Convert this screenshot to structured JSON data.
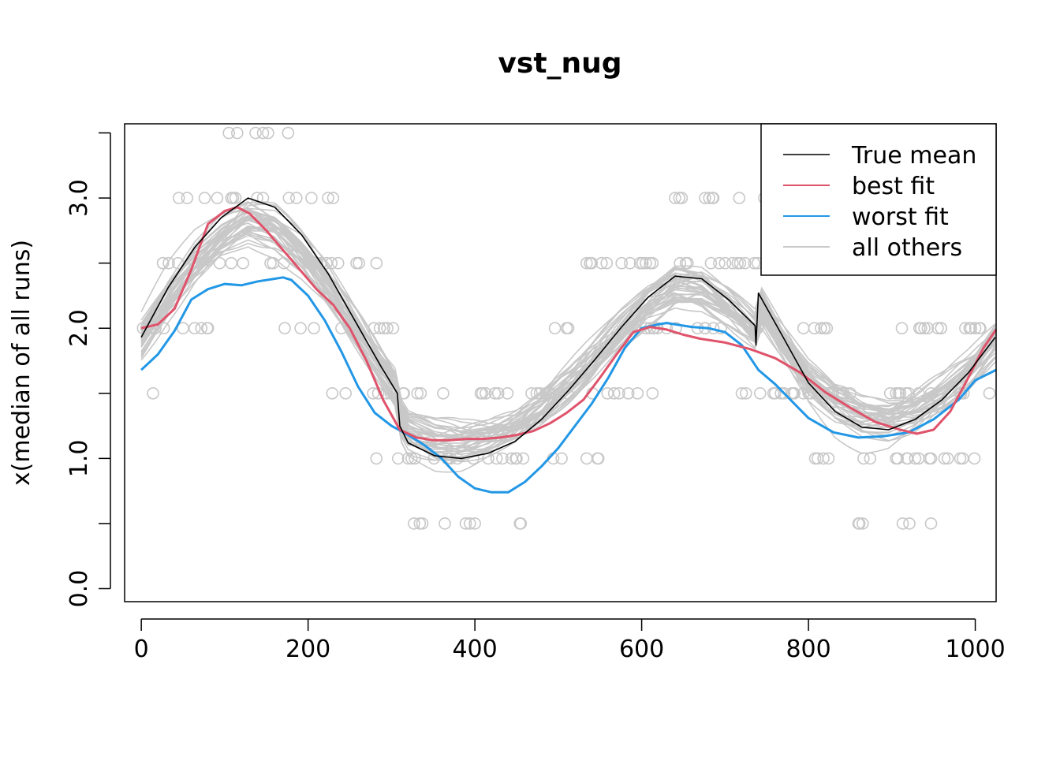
{
  "chart_data": {
    "type": "line",
    "title": "vst_nug",
    "xlabel": "",
    "ylabel": "x(median of all runs)",
    "xlim": [
      -20,
      1025
    ],
    "ylim": [
      -0.1,
      3.57
    ],
    "x_ticks": [
      0,
      200,
      400,
      600,
      800,
      1000
    ],
    "x_tick_labels": [
      "0",
      "200",
      "400",
      "600",
      "800",
      "1000"
    ],
    "y_ticks": [
      0.0,
      0.5,
      1.0,
      1.5,
      2.0,
      2.5,
      3.0,
      3.5
    ],
    "y_tick_labels": [
      "0.0",
      "",
      "1.0",
      "",
      "2.0",
      "",
      "3.0",
      ""
    ],
    "legend": {
      "position": "top-right",
      "entries": [
        {
          "label": "True mean",
          "color": "#000000"
        },
        {
          "label": "best fit",
          "color": "#df536b"
        },
        {
          "label": "worst fit",
          "color": "#2297e6"
        },
        {
          "label": "all others",
          "color": "#c8c8c8"
        }
      ]
    },
    "series": [
      {
        "name": "True mean",
        "color": "#000000",
        "x": [
          0,
          32,
          64,
          96,
          128,
          160,
          192,
          224,
          256,
          288,
          307,
          310,
          320,
          352,
          384,
          416,
          448,
          480,
          512,
          544,
          576,
          608,
          640,
          672,
          704,
          736,
          737,
          740,
          768,
          800,
          832,
          864,
          896,
          928,
          960,
          992,
          1024
        ],
        "values": [
          1.93,
          2.31,
          2.62,
          2.85,
          3.0,
          2.93,
          2.72,
          2.42,
          2.06,
          1.7,
          1.5,
          1.25,
          1.12,
          1.02,
          1.0,
          1.04,
          1.13,
          1.3,
          1.52,
          1.76,
          2.01,
          2.24,
          2.4,
          2.38,
          2.22,
          2.02,
          1.87,
          2.27,
          1.95,
          1.58,
          1.36,
          1.24,
          1.22,
          1.3,
          1.45,
          1.66,
          1.93
        ]
      },
      {
        "name": "best fit",
        "color": "#df536b",
        "x": [
          0,
          20,
          40,
          60,
          80,
          100,
          115,
          130,
          150,
          170,
          190,
          210,
          230,
          250,
          270,
          290,
          310,
          330,
          350,
          370,
          390,
          410,
          430,
          450,
          470,
          490,
          510,
          530,
          550,
          570,
          590,
          610,
          630,
          650,
          670,
          700,
          730,
          760,
          790,
          820,
          850,
          880,
          910,
          930,
          950,
          970,
          990,
          1010,
          1025
        ],
        "values": [
          2.0,
          2.03,
          2.15,
          2.45,
          2.8,
          2.9,
          2.93,
          2.88,
          2.75,
          2.6,
          2.45,
          2.3,
          2.18,
          2.0,
          1.75,
          1.45,
          1.22,
          1.16,
          1.14,
          1.14,
          1.15,
          1.15,
          1.16,
          1.18,
          1.21,
          1.27,
          1.35,
          1.45,
          1.62,
          1.8,
          1.97,
          2.01,
          1.99,
          1.95,
          1.92,
          1.89,
          1.84,
          1.77,
          1.66,
          1.51,
          1.39,
          1.28,
          1.22,
          1.19,
          1.22,
          1.36,
          1.6,
          1.85,
          1.99
        ]
      },
      {
        "name": "worst fit",
        "color": "#2297e6",
        "x": [
          0,
          20,
          40,
          60,
          80,
          100,
          120,
          140,
          160,
          170,
          180,
          200,
          220,
          240,
          260,
          280,
          300,
          320,
          340,
          360,
          380,
          400,
          420,
          440,
          460,
          480,
          500,
          520,
          540,
          560,
          580,
          600,
          620,
          630,
          640,
          660,
          680,
          700,
          720,
          740,
          760,
          780,
          800,
          830,
          860,
          890,
          920,
          950,
          980,
          1000,
          1025
        ],
        "values": [
          1.68,
          1.8,
          1.98,
          2.22,
          2.3,
          2.34,
          2.33,
          2.36,
          2.38,
          2.39,
          2.37,
          2.25,
          2.06,
          1.82,
          1.55,
          1.35,
          1.25,
          1.18,
          1.1,
          1.0,
          0.86,
          0.77,
          0.74,
          0.74,
          0.82,
          0.94,
          1.08,
          1.25,
          1.42,
          1.62,
          1.85,
          2.0,
          2.03,
          2.04,
          2.03,
          2.01,
          2.0,
          1.97,
          1.87,
          1.68,
          1.57,
          1.44,
          1.31,
          1.2,
          1.16,
          1.17,
          1.2,
          1.3,
          1.45,
          1.6,
          1.68
        ]
      }
    ]
  }
}
